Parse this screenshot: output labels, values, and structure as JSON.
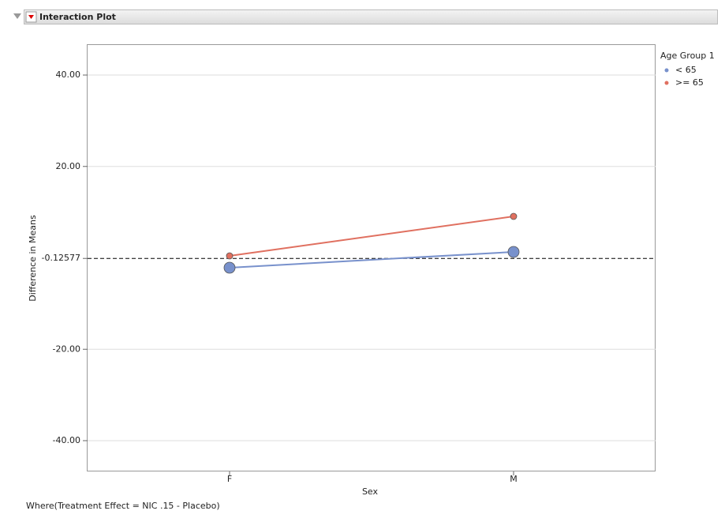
{
  "header": {
    "title": "Interaction Plot"
  },
  "chart_data": {
    "type": "line",
    "categories": [
      "F",
      "M"
    ],
    "series": [
      {
        "name": "< 65",
        "color": "#7891cc",
        "marker_radius": 7,
        "values": [
          -2.16,
          1.3
        ]
      },
      {
        "name": ">= 65",
        "color": "#e07060",
        "marker_radius": 4,
        "values": [
          0.43,
          9.07
        ]
      }
    ],
    "ylim": [
      -46.74,
      46.57
    ],
    "yticks": [
      {
        "value": 40,
        "label": "40.00"
      },
      {
        "value": 20,
        "label": "20.00"
      },
      {
        "value": -20,
        "label": "-20.00"
      },
      {
        "value": -40,
        "label": "-40.00"
      }
    ],
    "reference_line": -0.12577,
    "grid": true,
    "x_label": "Sex",
    "y_label": "Difference in Means",
    "legend_title": "Age Group 1",
    "legend_position": "right"
  },
  "footer": "Where(Treatment Effect = NIC .15 - Placebo)"
}
